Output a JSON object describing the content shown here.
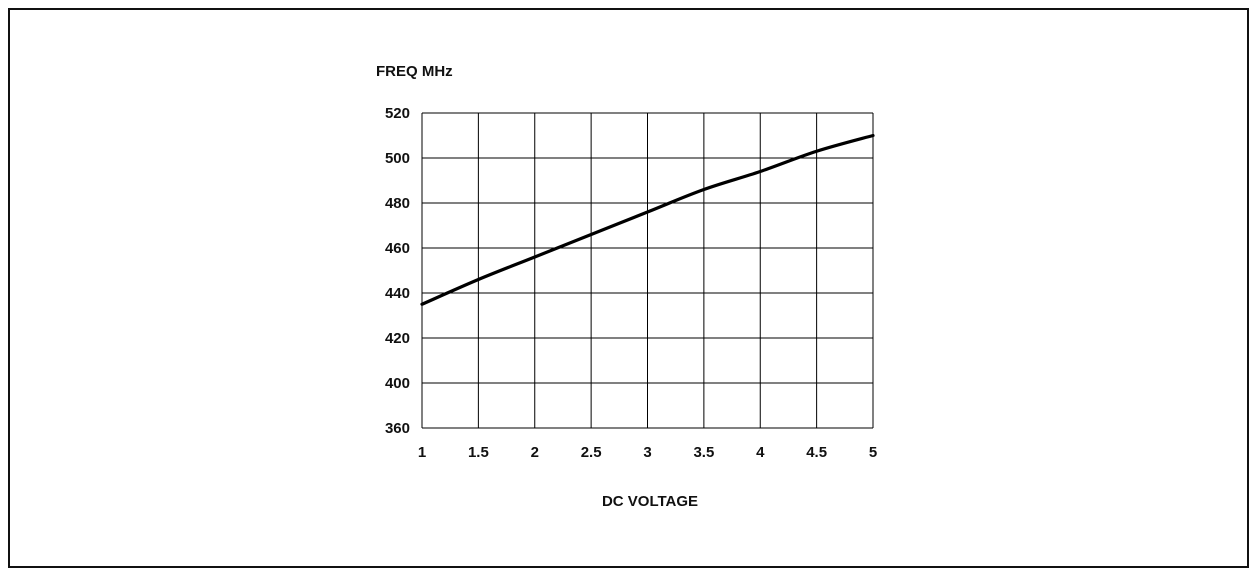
{
  "chart_data": {
    "type": "line",
    "title": "",
    "ylabel": "FREQ MHz",
    "xlabel": "DC VOLTAGE",
    "x_ticks": [
      "1",
      "1.5",
      "2",
      "2.5",
      "3",
      "3.5",
      "4",
      "4.5",
      "5"
    ],
    "y_ticks": [
      "360",
      "400",
      "420",
      "440",
      "460",
      "480",
      "500",
      "520"
    ],
    "xlim": [
      1,
      5
    ],
    "grid": true,
    "series": [
      {
        "x": [
          1,
          1.5,
          2,
          2.5,
          3,
          3.5,
          4,
          4.5,
          5
        ],
        "y": [
          435,
          446,
          456,
          466,
          476,
          486,
          494,
          503,
          510
        ]
      }
    ],
    "colors": {
      "line": "#000000",
      "grid": "#000000",
      "frame": "#111111"
    }
  }
}
